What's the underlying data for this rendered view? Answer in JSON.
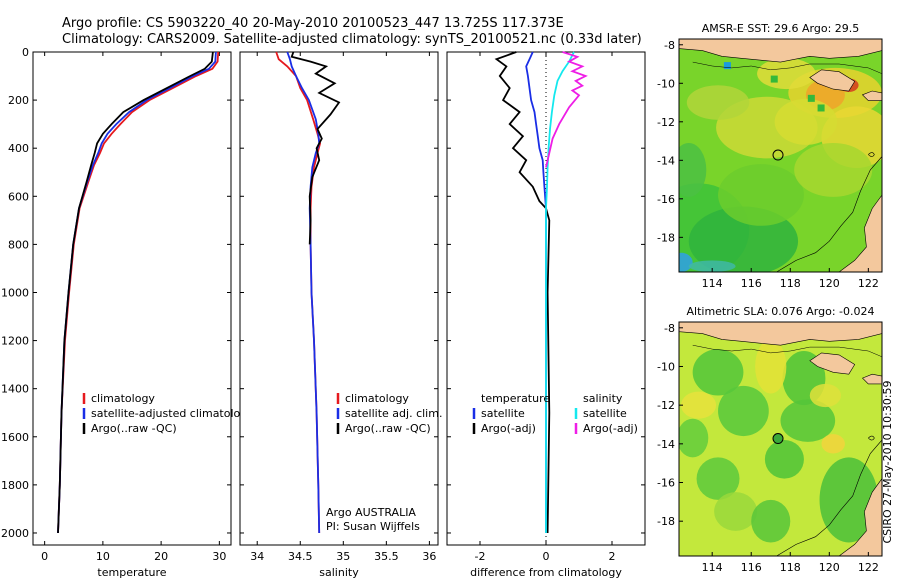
{
  "header": {
    "line1": "Argo profile: CS 5903220_40 20-May-2010 20100523_447 13.725S 117.373E",
    "line2": "Climatology: CARS2009. Satellite-adjusted climatology: synTS_20100521.nc (0.33d later)"
  },
  "colors": {
    "climatology": "#e6191e",
    "satellite": "#1a2ee6",
    "argo": "#000000",
    "sat_salinity": "#14e8ee",
    "argo_salinity": "#ee1ee6"
  },
  "chart_data": [
    {
      "id": "temperature",
      "type": "line",
      "xlabel": "temperature",
      "ylabel": "",
      "xlim": [
        -2,
        32
      ],
      "ylim": [
        2050,
        0
      ],
      "xticks": [
        0,
        10,
        20,
        30
      ],
      "yticks": [
        0,
        200,
        400,
        600,
        800,
        1000,
        1200,
        1400,
        1600,
        1800,
        2000
      ],
      "legend": [
        "climatology",
        "satellite-adjusted climatology",
        "Argo(..raw -QC)"
      ],
      "series": [
        {
          "name": "climatology",
          "color": "#e6191e",
          "x": [
            29.8,
            29.7,
            28.8,
            26,
            22,
            18,
            15,
            13,
            11.5,
            10.2,
            9.5,
            8.5,
            7.5,
            6,
            5,
            4.2,
            3.5,
            2.9,
            2.6,
            2.3
          ],
          "y": [
            0,
            40,
            70,
            100,
            150,
            200,
            250,
            300,
            340,
            380,
            420,
            470,
            540,
            650,
            800,
            1000,
            1200,
            1500,
            1800,
            2000
          ]
        },
        {
          "name": "satellite-adjusted climatology",
          "color": "#1a2ee6",
          "x": [
            29.4,
            29.3,
            28.2,
            25.5,
            21.5,
            17.5,
            14.5,
            12.3,
            10.8,
            9.8,
            9.2,
            8.3,
            7.3,
            5.9,
            4.9,
            4.1,
            3.4,
            2.9,
            2.6,
            2.3
          ],
          "y": [
            0,
            40,
            70,
            100,
            150,
            200,
            250,
            300,
            340,
            380,
            420,
            470,
            540,
            650,
            800,
            1000,
            1200,
            1500,
            1800,
            2000
          ]
        },
        {
          "name": "Argo(..raw -QC)",
          "color": "#000000",
          "x": [
            28.9,
            28.7,
            27.5,
            25,
            21,
            17,
            13.5,
            11.5,
            10,
            9,
            8.6,
            8,
            7.2,
            5.9,
            4.9,
            4.1,
            3.4,
            2.9,
            2.6,
            2.3
          ],
          "y": [
            0,
            40,
            70,
            100,
            150,
            200,
            250,
            300,
            340,
            380,
            420,
            470,
            540,
            650,
            800,
            1000,
            1200,
            1500,
            1800,
            2000
          ]
        }
      ]
    },
    {
      "id": "salinity",
      "type": "line",
      "xlabel": "salinity",
      "ylabel": "",
      "xlim": [
        33.8,
        36.1
      ],
      "ylim": [
        2050,
        0
      ],
      "xticks": [
        34,
        34.5,
        35,
        35.5,
        36
      ],
      "legend": [
        "climatology",
        "satellite adj. clim.",
        "Argo(..raw -QC)"
      ],
      "annotations": [
        "Argo AUSTRALIA",
        "PI: Susan Wijffels"
      ],
      "series": [
        {
          "name": "climatology",
          "color": "#e6191e",
          "x": [
            34.22,
            34.25,
            34.35,
            34.45,
            34.5,
            34.58,
            34.65,
            34.7,
            34.73,
            34.7,
            34.66,
            34.63,
            34.62,
            34.62,
            34.63,
            34.66,
            34.69,
            34.71,
            34.72
          ],
          "y": [
            0,
            30,
            60,
            100,
            150,
            200,
            280,
            340,
            380,
            420,
            480,
            560,
            650,
            800,
            1000,
            1200,
            1500,
            1800,
            2000
          ]
        },
        {
          "name": "satellite adj. clim.",
          "color": "#1a2ee6",
          "x": [
            34.35,
            34.38,
            34.4,
            34.45,
            34.52,
            34.6,
            34.68,
            34.71,
            34.72,
            34.68,
            34.64,
            34.62,
            34.61,
            34.62,
            34.63,
            34.66,
            34.69,
            34.71,
            34.72
          ],
          "y": [
            0,
            30,
            60,
            100,
            150,
            200,
            280,
            340,
            380,
            420,
            480,
            560,
            650,
            800,
            1000,
            1200,
            1500,
            1800,
            2000
          ]
        },
        {
          "name": "Argo(..raw -QC)",
          "color": "#000000",
          "x": [
            34.42,
            34.4,
            34.62,
            34.8,
            34.68,
            34.9,
            34.72,
            34.95,
            34.85,
            34.7,
            34.75,
            34.69,
            34.72,
            34.64,
            34.61,
            34.62,
            34.61
          ],
          "y": [
            0,
            20,
            40,
            60,
            90,
            130,
            170,
            210,
            260,
            320,
            360,
            400,
            450,
            520,
            600,
            700,
            800
          ]
        }
      ]
    },
    {
      "id": "difference",
      "type": "line",
      "xlabel": "difference from climatology",
      "ylabel": "",
      "xlim": [
        -3,
        3
      ],
      "ylim": [
        2050,
        0
      ],
      "xticks": [
        -2,
        0,
        2
      ],
      "legend_left_title": "temperature",
      "legend_left": [
        "satellite",
        "Argo(-adj)"
      ],
      "legend_right_title": "salinity",
      "legend_right": [
        "satellite",
        "Argo(-adj)"
      ],
      "series": [
        {
          "name": "temperature satellite",
          "color": "#1a2ee6",
          "x": [
            -0.4,
            -0.5,
            -0.6,
            -0.55,
            -0.5,
            -0.45,
            -0.35,
            -0.3,
            -0.25,
            -0.2,
            -0.1,
            -0.08,
            -0.05,
            0,
            0,
            0,
            0,
            0
          ],
          "y": [
            0,
            30,
            60,
            100,
            150,
            200,
            250,
            300,
            350,
            400,
            450,
            500,
            560,
            650,
            800,
            1200,
            1600,
            2000
          ]
        },
        {
          "name": "temperature Argo(-adj)",
          "color": "#000000",
          "x": [
            -0.9,
            -1.5,
            -1.2,
            -1.4,
            -1.1,
            -1.3,
            -0.8,
            -1.1,
            -0.7,
            -1.0,
            -0.6,
            -0.8,
            -0.4,
            -0.2,
            0,
            0.1,
            0.05,
            0.1,
            0.05
          ],
          "y": [
            0,
            30,
            60,
            100,
            150,
            200,
            250,
            300,
            350,
            400,
            450,
            500,
            560,
            620,
            650,
            700,
            1000,
            1500,
            2000
          ]
        },
        {
          "name": "salinity satellite",
          "color": "#14e8ee",
          "x": [
            0.85,
            0.7,
            0.5,
            0.35,
            0.25,
            0.18,
            0.12,
            0.08,
            0.05,
            0.03,
            0,
            0,
            0,
            0
          ],
          "y": [
            0,
            40,
            80,
            120,
            180,
            250,
            320,
            400,
            480,
            560,
            650,
            900,
            1500,
            2000
          ]
        },
        {
          "name": "salinity Argo(-adj)",
          "color": "#ee1ee6",
          "x": [
            0.5,
            0.95,
            0.7,
            1.1,
            0.8,
            1.2,
            0.9,
            1.1,
            0.8,
            1.0,
            0.7,
            0.4,
            0.2,
            0.1,
            0
          ],
          "y": [
            0,
            20,
            40,
            60,
            80,
            100,
            120,
            140,
            160,
            180,
            230,
            300,
            360,
            420,
            480
          ]
        }
      ]
    },
    {
      "id": "sst-map",
      "type": "heatmap",
      "title": "AMSR-E SST: 29.6 Argo: 29.5",
      "xlim": [
        112.3,
        122.7
      ],
      "ylim": [
        -19.8,
        -7.7
      ],
      "xticks": [
        114,
        116,
        118,
        120,
        122
      ],
      "xtick_labels": [
        "114",
        "116",
        "118",
        "120",
        "122"
      ],
      "yticks": [
        -8,
        -10,
        -12,
        -14,
        -16,
        -18
      ],
      "float_position": [
        117.373,
        -13.725
      ],
      "colors": {
        "land": "#f3c89d",
        "background": "#79d42a"
      }
    },
    {
      "id": "sla-map",
      "type": "heatmap",
      "title": "Altimetric SLA: 0.076 Argo: -0.024",
      "xlim": [
        112.3,
        122.7
      ],
      "ylim": [
        -19.8,
        -7.7
      ],
      "xticks": [
        114,
        116,
        118,
        120,
        122
      ],
      "xtick_labels": [
        "114",
        "116",
        "118",
        "120",
        "122"
      ],
      "yticks": [
        -8,
        -10,
        -12,
        -14,
        -16,
        -18
      ],
      "float_position": [
        117.373,
        -13.725
      ],
      "colors": {
        "land": "#f3c89d",
        "background": "#c3e83c"
      }
    }
  ],
  "credit": "CSIRO 27-May-2010 10:30:59"
}
